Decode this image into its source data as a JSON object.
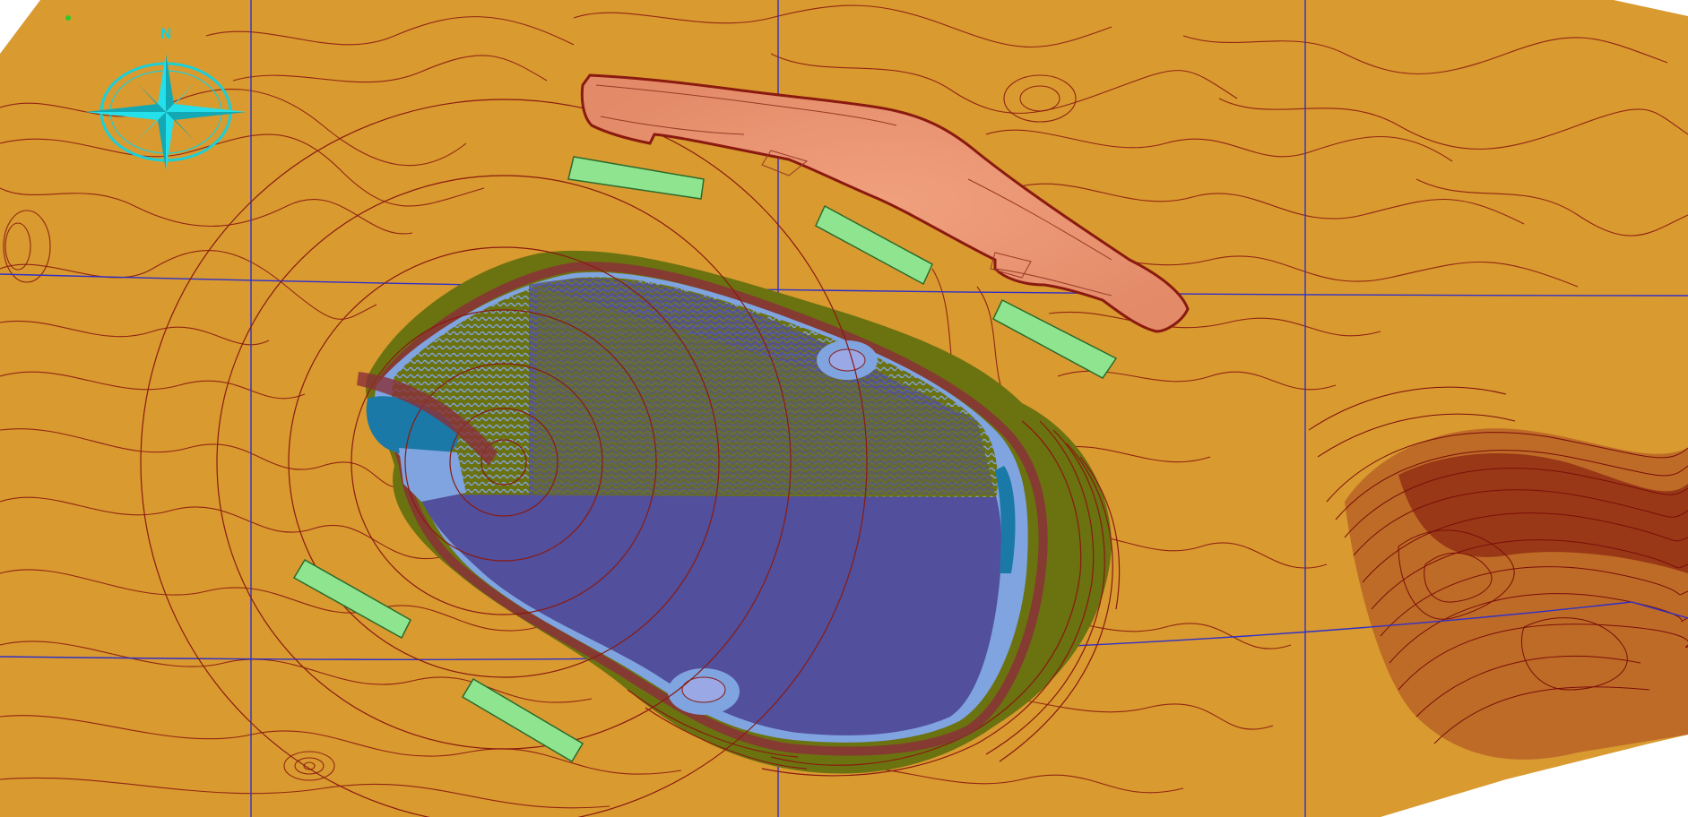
{
  "map": {
    "north_arrow_label": "N",
    "colors": {
      "terrain": "#d99a30",
      "contour": "#8a1a10",
      "grid": "#3030c8",
      "bench_olive": "#6b7210",
      "pit_water": "#524f9c",
      "pit_shallow": "#7fa4e0",
      "pit_teal": "#1b79a8",
      "waste_dump": "#e7916f",
      "stockpile_pads": "#8fe58f",
      "north_arrow": "#1ad0d8"
    },
    "icons": [
      "north-arrow-icon",
      "compass-rose-icon"
    ]
  }
}
